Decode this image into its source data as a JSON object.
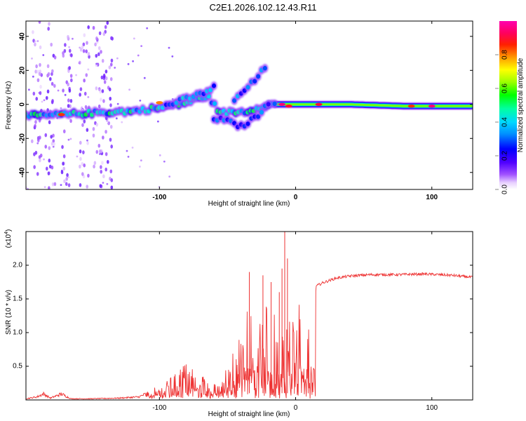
{
  "title": "C2E1.2026.102.12.43.R11",
  "chart_data": [
    {
      "type": "heatmap",
      "name": "spectrogram",
      "xlabel": "Height of straight line (km)",
      "ylabel": "Frequency (Hz)",
      "xlim": [
        -198,
        130
      ],
      "ylim": [
        -50,
        49
      ],
      "xticks": [
        -100,
        0,
        100
      ],
      "yticks": [
        -40,
        -20,
        0,
        20,
        40
      ],
      "colorbar": {
        "label": "Normalized spectral amplitude",
        "range": [
          0,
          1
        ],
        "ticks": [
          0.0,
          0.2,
          0.4,
          0.6,
          0.8
        ],
        "colors": [
          "#ffffff",
          "#c080ff",
          "#6000ff",
          "#0000ff",
          "#00c0ff",
          "#00ffb0",
          "#00ff00",
          "#c0ff00",
          "#ffff00",
          "#ffa000",
          "#ff0000",
          "#ff00a0"
        ]
      },
      "ridges": [
        {
          "name": "main-band",
          "points": [
            [
              -198,
              -7
            ],
            [
              -170,
              -6
            ],
            [
              -150,
              -5
            ],
            [
              -120,
              -4
            ],
            [
              -100,
              -2
            ],
            [
              -80,
              1
            ],
            [
              -65,
              5
            ],
            [
              -55,
              -5
            ],
            [
              -35,
              -4
            ],
            [
              -25,
              -1
            ],
            [
              -15,
              0
            ],
            [
              0,
              0
            ],
            [
              40,
              0
            ],
            [
              80,
              -1
            ],
            [
              100,
              -1
            ],
            [
              130,
              -1
            ]
          ]
        },
        {
          "name": "upper-branch",
          "points": [
            [
              -100,
              -2
            ],
            [
              -85,
              2
            ],
            [
              -70,
              6
            ],
            [
              -60,
              10
            ]
          ]
        },
        {
          "name": "curved-upper-branch",
          "points": [
            [
              -45,
              2
            ],
            [
              -38,
              8
            ],
            [
              -30,
              14
            ],
            [
              -22,
              22
            ]
          ]
        },
        {
          "name": "lower-branch",
          "points": [
            [
              -60,
              -8
            ],
            [
              -50,
              -10
            ],
            [
              -40,
              -13
            ],
            [
              -30,
              -8
            ],
            [
              -20,
              0
            ]
          ]
        }
      ],
      "hotspots": [
        {
          "x": -172,
          "y": -6,
          "v": 0.85
        },
        {
          "x": -100,
          "y": 1,
          "v": 0.8
        },
        {
          "x": -10,
          "y": 0,
          "v": 0.95
        },
        {
          "x": -5,
          "y": -1,
          "v": 0.9
        },
        {
          "x": 17,
          "y": 0,
          "v": 0.9
        },
        {
          "x": 85,
          "y": -1,
          "v": 0.85
        },
        {
          "x": 100,
          "y": -1,
          "v": 0.95
        }
      ]
    },
    {
      "type": "line",
      "name": "snr",
      "xlabel": "Height of straight line (km)",
      "ylabel": "SNR (10 * v/v)",
      "multiplier_label": "(x10",
      "multiplier_exp": "4",
      "xlim": [
        -198,
        130
      ],
      "ylim": [
        0,
        2.5
      ],
      "xticks": [
        -100,
        0,
        100
      ],
      "yticks": [
        0.5,
        1.0,
        1.5,
        2.0
      ],
      "ytick_labels": [
        "0.5",
        "1.0",
        "1.5",
        "2.0"
      ],
      "series": [
        {
          "name": "SNR",
          "color": "#ee3333",
          "envelope": [
            [
              -198,
              0.02
            ],
            [
              -190,
              0.05
            ],
            [
              -185,
              0.1
            ],
            [
              -180,
              0.03
            ],
            [
              -172,
              0.1
            ],
            [
              -165,
              0.02
            ],
            [
              -150,
              0.02
            ],
            [
              -130,
              0.03
            ],
            [
              -115,
              0.05
            ],
            [
              -105,
              0.15
            ],
            [
              -95,
              0.25
            ],
            [
              -88,
              0.4
            ],
            [
              -82,
              0.55
            ],
            [
              -76,
              0.5
            ],
            [
              -70,
              0.42
            ],
            [
              -64,
              0.3
            ],
            [
              -58,
              0.2
            ],
            [
              -52,
              0.4
            ],
            [
              -46,
              0.8
            ],
            [
              -40,
              1.3
            ],
            [
              -35,
              1.6
            ],
            [
              -30,
              1.3
            ],
            [
              -26,
              1.55
            ],
            [
              -22,
              1.4
            ],
            [
              -18,
              1.2
            ],
            [
              -14,
              1.3
            ],
            [
              -10,
              1.15
            ],
            [
              -7,
              1.35
            ],
            [
              -4,
              1.25
            ],
            [
              0,
              1.35
            ],
            [
              5,
              1.55
            ],
            [
              10,
              1.7
            ],
            [
              15,
              1.7
            ],
            [
              20,
              1.75
            ],
            [
              30,
              1.82
            ],
            [
              40,
              1.85
            ],
            [
              55,
              1.87
            ],
            [
              75,
              1.87
            ],
            [
              95,
              1.88
            ],
            [
              115,
              1.86
            ],
            [
              130,
              1.83
            ]
          ],
          "spikes": [
            [
              -8,
              2.5
            ],
            [
              -10,
              1.95
            ],
            [
              -12,
              1.6
            ],
            [
              -24,
              1.85
            ],
            [
              -34,
              1.9
            ],
            [
              -18,
              1.75
            ],
            [
              -6,
              2.1
            ]
          ]
        }
      ]
    }
  ]
}
